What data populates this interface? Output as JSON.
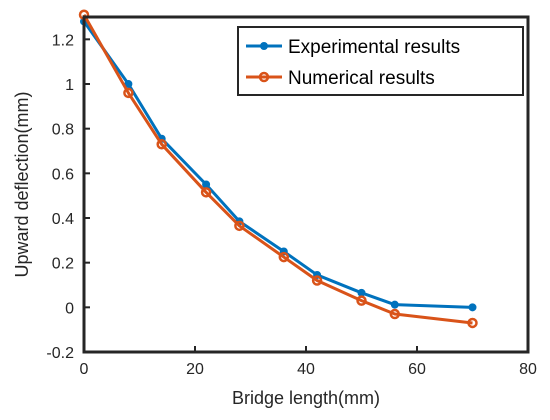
{
  "chart_data": {
    "type": "line",
    "xlabel": "Bridge length(mm)",
    "ylabel": "Upward deflection(mm)",
    "xlim": [
      0,
      80
    ],
    "ylim": [
      -0.2,
      1.3
    ],
    "xticks": [
      0,
      20,
      40,
      60,
      80
    ],
    "yticks": [
      -0.2,
      0,
      0.2,
      0.4,
      0.6,
      0.8,
      1,
      1.2
    ],
    "grid": false,
    "legend": "top-right",
    "series": [
      {
        "name": "Experimental results",
        "color": "#0072BD",
        "marker": "filled-circle",
        "x": [
          0,
          8,
          14,
          22,
          28,
          36,
          42,
          50,
          56,
          70
        ],
        "y": [
          1.28,
          1.0,
          0.755,
          0.55,
          0.385,
          0.25,
          0.145,
          0.065,
          0.012,
          0.0
        ]
      },
      {
        "name": "Numerical results",
        "color": "#D95319",
        "marker": "open-circle",
        "x": [
          0,
          8,
          14,
          22,
          28,
          36,
          42,
          50,
          56,
          70
        ],
        "y": [
          1.31,
          0.96,
          0.73,
          0.515,
          0.365,
          0.225,
          0.12,
          0.03,
          -0.03,
          -0.07
        ]
      }
    ]
  }
}
